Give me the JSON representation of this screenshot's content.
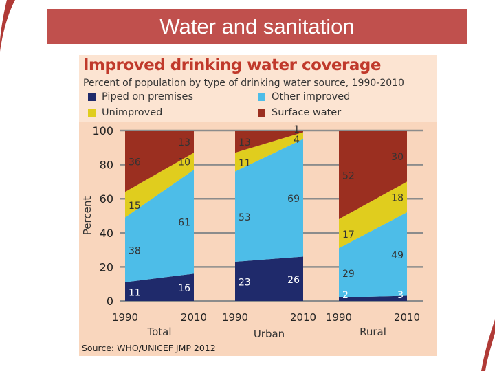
{
  "slide": {
    "title": "Water and sanitation"
  },
  "chart_data": {
    "type": "area",
    "title": "Improved drinking water coverage",
    "subtitle": "Percent of population by type of drinking water source, 1990-2010",
    "ylabel": "Percent",
    "ylim": [
      0,
      100
    ],
    "yticks": [
      "0",
      "20",
      "40",
      "60",
      "80",
      "100"
    ],
    "grid": true,
    "stacked": true,
    "legend": [
      {
        "name": "Piped on premises",
        "color": "#1f2a6b"
      },
      {
        "name": "Other improved",
        "color": "#4dbde8"
      },
      {
        "name": "Unimproved",
        "color": "#e0cd1e"
      },
      {
        "name": "Surface water",
        "color": "#9b2f20"
      }
    ],
    "legend_position": "top",
    "panels": [
      {
        "label": "Total",
        "x": [
          "1990",
          "2010"
        ],
        "series": [
          {
            "name": "Piped on premises",
            "values": [
              11,
              16
            ]
          },
          {
            "name": "Other improved",
            "values": [
              38,
              61
            ]
          },
          {
            "name": "Unimproved",
            "values": [
              15,
              10
            ]
          },
          {
            "name": "Surface water",
            "values": [
              36,
              13
            ]
          }
        ]
      },
      {
        "label": "Urban",
        "x": [
          "1990",
          "2010"
        ],
        "series": [
          {
            "name": "Piped on premises",
            "values": [
              23,
              26
            ]
          },
          {
            "name": "Other improved",
            "values": [
              53,
              69
            ]
          },
          {
            "name": "Unimproved",
            "values": [
              11,
              4
            ]
          },
          {
            "name": "Surface water",
            "values": [
              13,
              1
            ]
          }
        ]
      },
      {
        "label": "Rural",
        "x": [
          "1990",
          "2010"
        ],
        "series": [
          {
            "name": "Piped on premises",
            "values": [
              2,
              3
            ]
          },
          {
            "name": "Other improved",
            "values": [
              29,
              49
            ]
          },
          {
            "name": "Unimproved",
            "values": [
              17,
              18
            ]
          },
          {
            "name": "Surface water",
            "values": [
              52,
              30
            ]
          }
        ]
      }
    ],
    "source": "Source:  WHO/UNICEF JMP 2012"
  }
}
